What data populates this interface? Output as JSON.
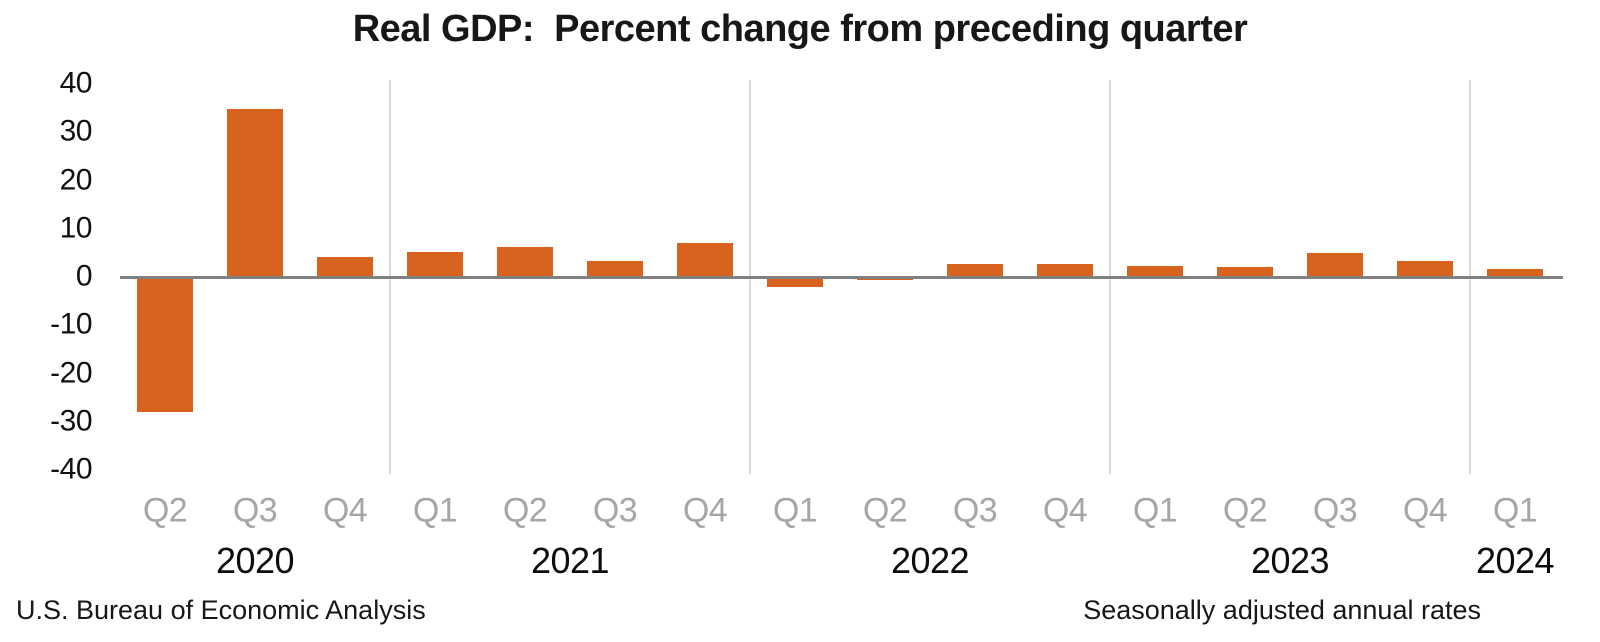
{
  "title": "Real GDP:  Percent change from preceding quarter",
  "footer": {
    "left": "U.S. Bureau of Economic Analysis",
    "right": "Seasonally adjusted annual rates"
  },
  "chart_data": {
    "type": "bar",
    "title": "Real GDP:  Percent change from preceding quarter",
    "categories": [
      "Q2 2020",
      "Q3 2020",
      "Q4 2020",
      "Q1 2021",
      "Q2 2021",
      "Q3 2021",
      "Q4 2021",
      "Q1 2022",
      "Q2 2022",
      "Q3 2022",
      "Q4 2022",
      "Q1 2023",
      "Q2 2023",
      "Q3 2023",
      "Q4 2023",
      "Q1 2024"
    ],
    "quarter_labels": [
      "Q2",
      "Q3",
      "Q4",
      "Q1",
      "Q2",
      "Q3",
      "Q4",
      "Q1",
      "Q2",
      "Q3",
      "Q4",
      "Q1",
      "Q2",
      "Q3",
      "Q4",
      "Q1"
    ],
    "values": [
      -28.0,
      34.8,
      4.2,
      5.2,
      6.2,
      3.3,
      7.0,
      -2.0,
      -0.6,
      2.7,
      2.6,
      2.2,
      2.1,
      4.9,
      3.4,
      1.6
    ],
    "year_groups": [
      {
        "label": "2020",
        "quarter_count": 3
      },
      {
        "label": "2021",
        "quarter_count": 4
      },
      {
        "label": "2022",
        "quarter_count": 4
      },
      {
        "label": "2023",
        "quarter_count": 4
      },
      {
        "label": "2024",
        "quarter_count": 1
      }
    ],
    "y_ticks": [
      40,
      30,
      20,
      10,
      0,
      -10,
      -20,
      -30,
      -40
    ],
    "ylim": [
      -40,
      40
    ],
    "xlabel": "",
    "ylabel": "",
    "legend": "none",
    "grid": "vertical year-separator lines only",
    "bar_color": "#D7631E",
    "axis_line_color": "#808080",
    "gridline_color": "#D9D9D9",
    "quarter_label_color": "#A6A6A6",
    "year_label_color": "#000000"
  }
}
